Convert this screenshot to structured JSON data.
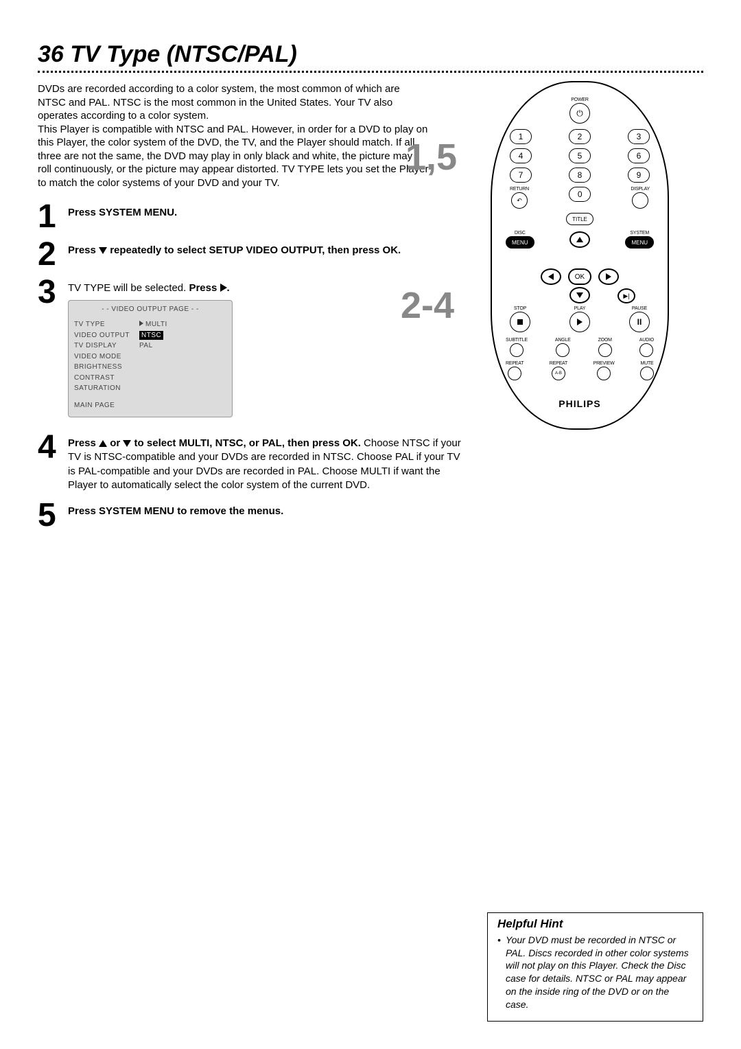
{
  "page_number": "36",
  "title": "TV Type (NTSC/PAL)",
  "intro": "DVDs are recorded according to a color system, the most common of which are NTSC and PAL. NTSC is the most common in the United States. Your TV also operates according to a color system.\nThis Player is compatible with NTSC and PAL. However, in order for a DVD to play on this Player, the color system of the DVD, the TV, and the Player should match. If all three are not the same, the DVD may play in only black and white, the picture may roll continuously, or the picture may appear distorted. TV TYPE lets you set the Player to match the color systems of your DVD and your TV.",
  "steps": {
    "s1": {
      "num": "1",
      "text": "Press SYSTEM MENU."
    },
    "s2": {
      "num": "2",
      "bold1": "Press ",
      "bold2": " repeatedly to select SETUP VIDEO OUTPUT, then press OK."
    },
    "s3": {
      "num": "3",
      "pre": "TV TYPE will be selected. ",
      "bold": "Press "
    },
    "s4": {
      "num": "4",
      "bold1": "Press ",
      "bold2": " or ",
      "bold3": " to select MULTI, NTSC, or PAL, then press OK.",
      "rest": " Choose NTSC if your TV is NTSC-compatible and your DVDs are recorded in NTSC. Choose PAL if your TV is PAL-compatible and your DVDs are recorded in PAL. Choose MULTI if want the Player to automatically select the color system of the current DVD."
    },
    "s5": {
      "num": "5",
      "text": "Press SYSTEM MENU to remove the menus."
    }
  },
  "osd": {
    "header": "- -  VIDEO OUTPUT PAGE  - -",
    "rows": [
      {
        "label": "TV TYPE",
        "value": "MULTI",
        "arrow": true
      },
      {
        "label": "VIDEO OUTPUT",
        "value": "NTSC",
        "selected": true
      },
      {
        "label": "TV DISPLAY",
        "value": "PAL"
      },
      {
        "label": "VIDEO MODE",
        "value": ""
      },
      {
        "label": "BRIGHTNESS",
        "value": ""
      },
      {
        "label": "CONTRAST",
        "value": ""
      },
      {
        "label": "SATURATION",
        "value": ""
      }
    ],
    "main": "MAIN PAGE"
  },
  "remote": {
    "callout1": "1,5",
    "callout2": "2-4",
    "power": "POWER",
    "numbers": [
      "1",
      "2",
      "3",
      "4",
      "5",
      "6",
      "7",
      "8",
      "9",
      "0"
    ],
    "return": "RETURN",
    "display": "DISPLAY",
    "title": "TITLE",
    "disc": "DISC",
    "system": "SYSTEM",
    "menu": "MENU",
    "ok": "OK",
    "stop": "STOP",
    "play": "PLAY",
    "pause": "PAUSE",
    "row_a": [
      "SUBTITLE",
      "ANGLE",
      "ZOOM",
      "AUDIO"
    ],
    "row_b": [
      "REPEAT",
      "REPEAT",
      "PREVIEW",
      "MUTE"
    ],
    "ab": "A-B",
    "brand": "PHILIPS"
  },
  "hint": {
    "title": "Helpful Hint",
    "text": "Your DVD must be recorded in NTSC or PAL. Discs recorded in other color systems will not play on this Player. Check the Disc case for details. NTSC or PAL may appear on the inside ring of the DVD or on the case."
  },
  "colors": {
    "text": "#000000",
    "callout": "#888888",
    "osd_bg": "#dcdcdc"
  }
}
